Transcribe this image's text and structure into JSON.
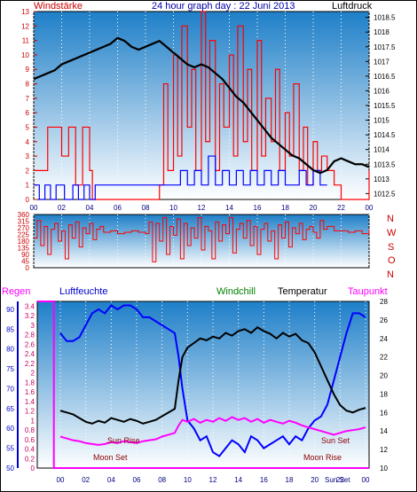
{
  "header": {
    "left_label": "Windstärke",
    "title": "24 hour graph day : 22 Juni 2013",
    "right_label": "Luftdruck"
  },
  "legend2": {
    "regen": "Regen",
    "luftfeuchte": "Luftfeuchte",
    "windchill": "Windchill",
    "temperatur": "Temperatur",
    "taupunkt": "Taupunkt"
  },
  "compass": [
    "N",
    "W",
    "S",
    "O",
    "N"
  ],
  "events": {
    "sun_rise": "Sun Rise",
    "moon_set": "Moon Set",
    "sun_set": "Sun Set",
    "moon_rise": "Moon Rise",
    "sun_set_2": "Sun Set"
  },
  "colors": {
    "wind": "#ff0000",
    "gust": "#0000ff",
    "pressure": "#000000",
    "humidity": "#0000ff",
    "windchill": "#008000",
    "temperature": "#000000",
    "dewpoint": "#ff00ff",
    "rain": "#ff00ff",
    "sky_top": "#1e7fc8",
    "sky_bottom": "#ffffff"
  },
  "chart_data": [
    {
      "type": "line",
      "name": "wind-pressure",
      "x_ticks": [
        "00",
        "02",
        "04",
        "06",
        "08",
        "10",
        "12",
        "14",
        "16",
        "18",
        "20",
        "22",
        "00"
      ],
      "y_left_ticks": [
        "0",
        "1",
        "2",
        "3",
        "4",
        "5",
        "6",
        "7",
        "8",
        "9",
        "10",
        "11",
        "12",
        "13"
      ],
      "y_left_range": [
        0,
        13
      ],
      "y_right_ticks": [
        "1012.5",
        "1013",
        "1013.5",
        "1014",
        "1014.5",
        "1015",
        "1015.5",
        "1016",
        "1016.5",
        "1017",
        "1017.5",
        "1018",
        "1018.5"
      ],
      "y_right_range": [
        1012.3,
        1018.7
      ],
      "series": [
        {
          "role": "wind",
          "x": [
            0,
            1,
            2,
            2.5,
            3,
            3.5,
            4,
            4.2,
            5,
            6,
            7,
            8,
            8.6,
            9,
            9.3,
            9.6,
            10,
            10.3,
            10.6,
            11,
            11.3,
            11.6,
            12,
            12.3,
            12.6,
            13,
            13.3,
            13.6,
            14,
            14.3,
            14.6,
            15,
            15.3,
            15.6,
            16,
            16.3,
            16.6,
            17,
            17.3,
            17.6,
            18,
            18.3,
            18.6,
            19,
            19.3,
            19.6,
            20,
            20.3,
            20.6,
            21,
            21.5,
            22,
            23,
            23.8,
            24
          ],
          "y": [
            2,
            5,
            3,
            5,
            1,
            5,
            2,
            0,
            0,
            0,
            0,
            0,
            0,
            1,
            8,
            2,
            10,
            3,
            12,
            5,
            9,
            2,
            13,
            4,
            11,
            2,
            8,
            5,
            10,
            3,
            12,
            4,
            9,
            2,
            11,
            3,
            7,
            4,
            9,
            2,
            6,
            3,
            8,
            2,
            5,
            1,
            4,
            2,
            3,
            2,
            1,
            0,
            0,
            0,
            2
          ]
        },
        {
          "role": "gust",
          "x": [
            0,
            0.4,
            0.8,
            1.2,
            1.6,
            2.2,
            2.8,
            3.2,
            3.6,
            4.0,
            4.4,
            9.4,
            10,
            10.5,
            11,
            11.5,
            12,
            12.5,
            13,
            13.5,
            14,
            14.5,
            15,
            15.5,
            16,
            16.5,
            17,
            17.5,
            18,
            18.5,
            19,
            19.5,
            20,
            20.5,
            21
          ],
          "y": [
            1,
            0,
            1,
            0,
            1,
            0,
            1,
            0,
            1,
            0,
            1,
            1,
            1,
            2,
            1,
            2,
            1,
            3,
            1,
            2,
            1,
            2,
            1,
            2,
            1,
            2,
            1,
            2,
            1,
            1,
            2,
            1,
            2,
            1,
            1
          ]
        },
        {
          "role": "pressure",
          "x": [
            0,
            0.5,
            1,
            1.5,
            2,
            2.5,
            3,
            3.5,
            4,
            4.5,
            5,
            5.5,
            6,
            6.5,
            7,
            7.5,
            8,
            8.5,
            9,
            9.5,
            10,
            10.5,
            11,
            11.5,
            12,
            12.5,
            13,
            13.5,
            14,
            14.5,
            15,
            15.5,
            16,
            16.5,
            17,
            17.5,
            18,
            18.5,
            19,
            19.5,
            20,
            20.5,
            21,
            21.5,
            22,
            22.5,
            23,
            23.5,
            24
          ],
          "y": [
            1016.4,
            1016.5,
            1016.6,
            1016.7,
            1016.9,
            1017.0,
            1017.1,
            1017.2,
            1017.3,
            1017.4,
            1017.5,
            1017.6,
            1017.8,
            1017.7,
            1017.5,
            1017.4,
            1017.5,
            1017.6,
            1017.7,
            1017.5,
            1017.3,
            1017.1,
            1016.9,
            1016.8,
            1016.9,
            1016.8,
            1016.6,
            1016.4,
            1016.1,
            1015.8,
            1015.6,
            1015.3,
            1015.0,
            1014.7,
            1014.4,
            1014.2,
            1014.0,
            1013.8,
            1013.7,
            1013.5,
            1013.3,
            1013.2,
            1013.3,
            1013.6,
            1013.7,
            1013.6,
            1013.5,
            1013.5,
            1013.4
          ]
        }
      ]
    },
    {
      "type": "line",
      "name": "wind-direction",
      "x_ticks": [
        "00",
        "02",
        "04",
        "06",
        "08",
        "10",
        "12",
        "14",
        "16",
        "18",
        "20",
        "22",
        "00"
      ],
      "y_left_ticks": [
        "0",
        "45",
        "90",
        "135",
        "180",
        "225",
        "270",
        "315",
        "360"
      ],
      "y_left_range": [
        0,
        360
      ],
      "series": [
        {
          "role": "direction",
          "x": [
            0,
            0.25,
            0.5,
            0.75,
            1,
            1.25,
            1.5,
            1.75,
            2,
            2.25,
            2.5,
            2.75,
            3,
            3.25,
            3.5,
            3.75,
            4,
            4.25,
            4.5,
            4.75,
            5,
            5.5,
            6,
            6.5,
            7,
            7.5,
            8,
            8.25,
            8.5,
            8.75,
            9,
            9.25,
            9.5,
            9.75,
            10,
            10.25,
            10.5,
            10.75,
            11,
            11.25,
            11.5,
            11.75,
            12,
            12.25,
            12.5,
            12.75,
            13,
            13.25,
            13.5,
            13.75,
            14,
            14.25,
            14.5,
            14.75,
            15,
            15.25,
            15.5,
            15.75,
            16,
            16.25,
            16.5,
            16.75,
            17,
            17.25,
            17.5,
            17.75,
            18,
            18.25,
            18.5,
            18.75,
            19,
            19.25,
            19.5,
            19.75,
            20,
            20.25,
            20.5,
            20.75,
            21,
            21.5,
            22,
            22.5,
            23,
            23.5,
            24
          ],
          "y": [
            200,
            320,
            150,
            280,
            90,
            260,
            300,
            180,
            250,
            60,
            290,
            200,
            310,
            140,
            270,
            230,
            300,
            190,
            260,
            280,
            240,
            250,
            230,
            240,
            250,
            240,
            230,
            310,
            40,
            300,
            180,
            340,
            90,
            280,
            220,
            330,
            60,
            300,
            150,
            270,
            200,
            340,
            120,
            280,
            250,
            60,
            310,
            180,
            290,
            230,
            340,
            100,
            260,
            300,
            200,
            320,
            150,
            280,
            90,
            260,
            300,
            180,
            250,
            60,
            290,
            200,
            310,
            140,
            270,
            230,
            300,
            190,
            260,
            280,
            240,
            200,
            320,
            260,
            280,
            250,
            250,
            240,
            250,
            230,
            260
          ]
        }
      ]
    },
    {
      "type": "line",
      "name": "humidity-temperature",
      "x_ticks": [
        "00",
        "02",
        "04",
        "06",
        "08",
        "10",
        "12",
        "14",
        "16",
        "18",
        "20",
        "22",
        "00"
      ],
      "y_left_outer_ticks": [
        "50",
        "55",
        "60",
        "65",
        "70",
        "75",
        "80",
        "85",
        "90"
      ],
      "y_left_outer_range": [
        50,
        92
      ],
      "y_left_inner_ticks": [
        "0",
        "0.2",
        "0.4",
        "0.6",
        "0.8",
        "1",
        "1.2",
        "1.4",
        "1.6",
        "1.8",
        "2",
        "2.2",
        "2.4",
        "2.6",
        "2.8",
        "3",
        "3.2",
        "3.4"
      ],
      "y_left_inner_range": [
        0,
        3.5
      ],
      "y_right_ticks": [
        "10",
        "12",
        "14",
        "16",
        "18",
        "20",
        "22",
        "24",
        "26",
        "28"
      ],
      "y_right_range": [
        10,
        28
      ],
      "series": [
        {
          "role": "humidity",
          "x": [
            0,
            0.5,
            1,
            1.5,
            2,
            2.5,
            3,
            3.5,
            4,
            4.5,
            5,
            5.5,
            6,
            6.5,
            7,
            7.5,
            8,
            8.5,
            9,
            9.3,
            9.6,
            10,
            10.5,
            11,
            11.5,
            12,
            12.5,
            13,
            13.5,
            14,
            14.5,
            15,
            15.5,
            16,
            16.5,
            17,
            17.5,
            18,
            18.5,
            19,
            19.5,
            20,
            20.5,
            21,
            21.5,
            22,
            22.5,
            23,
            23.5,
            24
          ],
          "y": [
            84,
            82,
            82,
            83,
            86,
            89,
            90,
            89,
            91,
            90,
            91,
            91,
            90,
            88,
            88,
            87,
            86,
            85,
            84,
            78,
            70,
            62,
            60,
            57,
            58,
            54,
            53,
            55,
            57,
            56,
            54,
            58,
            57,
            55,
            56,
            57,
            58,
            56,
            58,
            57,
            60,
            62,
            63,
            66,
            72,
            78,
            84,
            89,
            89,
            88
          ]
        },
        {
          "role": "temperature",
          "x": [
            0,
            0.5,
            1,
            1.5,
            2,
            2.5,
            3,
            3.5,
            4,
            4.5,
            5,
            5.5,
            6,
            6.5,
            7,
            7.5,
            8,
            8.5,
            9,
            9.3,
            9.6,
            10,
            10.5,
            11,
            11.5,
            12,
            12.5,
            13,
            13.5,
            14,
            14.5,
            15,
            15.5,
            16,
            16.5,
            17,
            17.5,
            18,
            18.5,
            19,
            19.5,
            20,
            20.5,
            21,
            21.5,
            22,
            22.5,
            23,
            23.5,
            24
          ],
          "y": [
            16.2,
            16.0,
            15.8,
            15.4,
            15.0,
            14.8,
            15.1,
            14.9,
            15.4,
            15.2,
            15.0,
            15.3,
            15.1,
            14.8,
            15.0,
            15.2,
            15.6,
            16.0,
            16.4,
            19.5,
            22.0,
            23.0,
            23.5,
            24.0,
            23.8,
            24.2,
            24.0,
            24.6,
            24.3,
            24.8,
            25.0,
            24.6,
            25.2,
            24.8,
            24.5,
            24.0,
            24.6,
            24.2,
            24.5,
            23.8,
            23.5,
            22.5,
            21.0,
            19.5,
            18.0,
            16.8,
            16.2,
            16.0,
            16.3,
            16.5
          ]
        },
        {
          "role": "dewpoint",
          "x": [
            0,
            0.5,
            1,
            1.5,
            2,
            2.5,
            3,
            3.5,
            4,
            4.5,
            5,
            5.5,
            6,
            6.5,
            7,
            7.5,
            8,
            8.5,
            9,
            9.3,
            9.6,
            10,
            10.5,
            11,
            11.5,
            12,
            12.5,
            13,
            13.5,
            14,
            14.5,
            15,
            15.5,
            16,
            16.5,
            17,
            17.5,
            18,
            18.5,
            19,
            19.5,
            20,
            20.5,
            21,
            21.5,
            22,
            22.5,
            23,
            23.5,
            24
          ],
          "y": [
            13.4,
            13.2,
            13.0,
            12.9,
            12.7,
            12.6,
            12.5,
            12.6,
            12.8,
            12.7,
            12.9,
            12.8,
            12.7,
            12.9,
            13.0,
            13.1,
            13.4,
            13.6,
            13.8,
            14.6,
            15.2,
            15.0,
            15.3,
            14.9,
            15.2,
            15.0,
            15.4,
            15.1,
            15.5,
            15.2,
            15.4,
            15.0,
            15.3,
            14.9,
            15.2,
            15.0,
            14.8,
            15.1,
            14.9,
            14.6,
            14.4,
            14.2,
            14.0,
            13.8,
            13.6,
            13.8,
            14.0,
            14.1,
            14.2,
            14.4
          ]
        },
        {
          "role": "rain",
          "x": [
            0,
            1.2,
            1.2,
            24
          ],
          "y": [
            3.5,
            3.5,
            0,
            0
          ]
        }
      ]
    }
  ]
}
